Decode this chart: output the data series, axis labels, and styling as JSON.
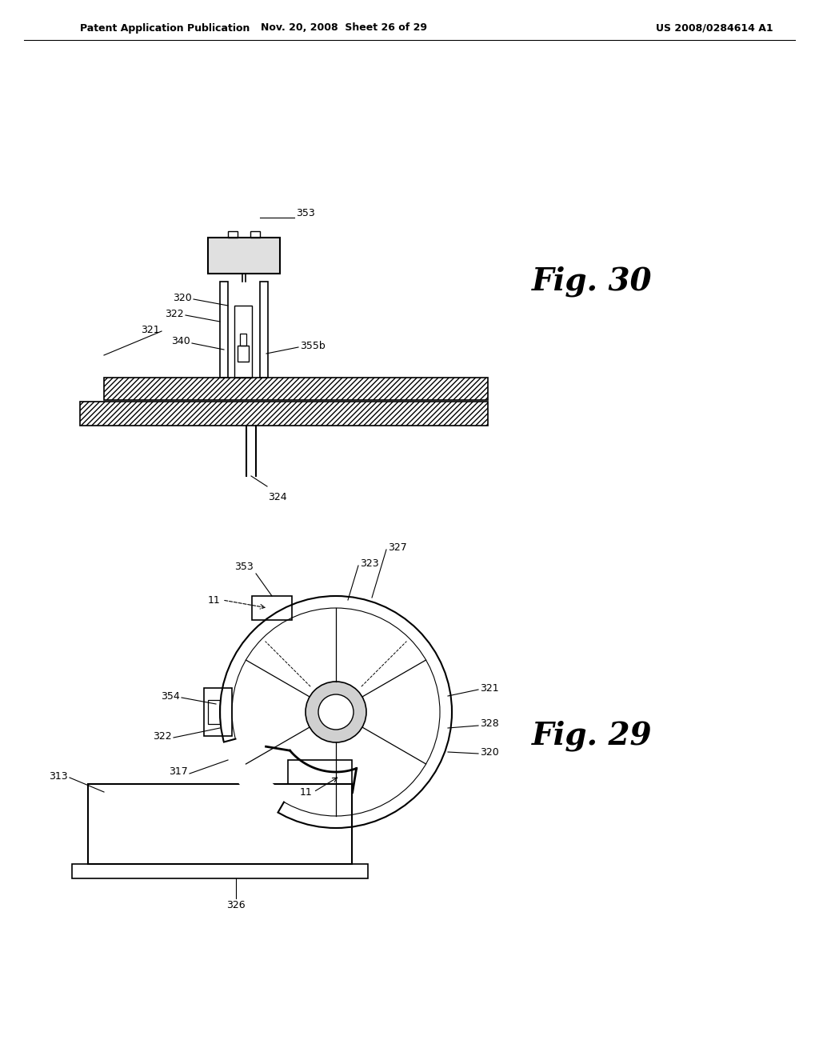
{
  "bg_color": "#ffffff",
  "line_color": "#000000",
  "header_left": "Patent Application Publication",
  "header_center": "Nov. 20, 2008  Sheet 26 of 29",
  "header_right": "US 2008/0284614 A1",
  "fig30_label": "Fig. 30",
  "fig29_label": "Fig. 29",
  "fig30_labels": [
    "353",
    "322",
    "320",
    "321",
    "340",
    "355b",
    "324"
  ],
  "fig29_labels": [
    "353",
    "323",
    "327",
    "11",
    "354",
    "322",
    "317",
    "321",
    "328",
    "320",
    "313",
    "326"
  ]
}
